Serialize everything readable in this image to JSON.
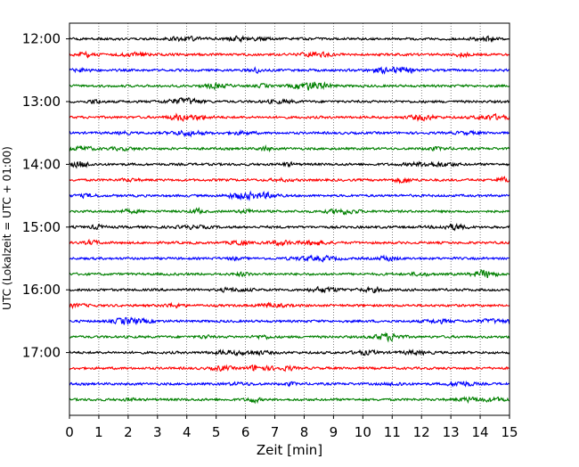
{
  "chart_data": {
    "type": "line",
    "chart_kind": "helicorder",
    "xlabel": "Zeit  [min]",
    "ylabel": "UTC (Lokalzeit = UTC + 01:00)",
    "x_ticks": [
      "0",
      "1",
      "2",
      "3",
      "4",
      "5",
      "6",
      "7",
      "8",
      "9",
      "10",
      "11",
      "12",
      "13",
      "14",
      "15"
    ],
    "xlim": [
      0,
      15
    ],
    "y_ticks": [
      "12:00",
      "13:00",
      "14:00",
      "15:00",
      "16:00",
      "17:00"
    ],
    "ylim_utc": [
      "11:45",
      "18:00"
    ],
    "trace_start_first": "12:00",
    "trace_interval_minutes": 15,
    "trace_count": 24,
    "trace_colors": [
      "#000000",
      "#ff0000",
      "#0000ff",
      "#008000"
    ],
    "grid_vertical": "dotted, every 1 min",
    "legend": "none"
  }
}
